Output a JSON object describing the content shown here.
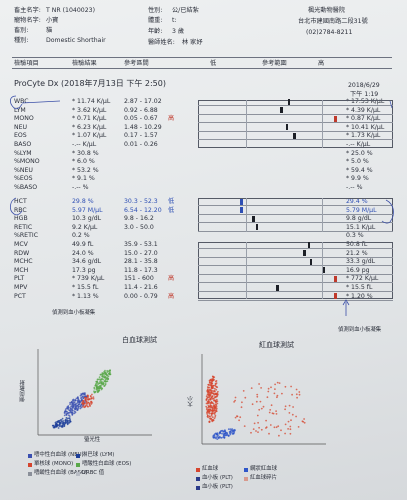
{
  "header": {
    "owner_label": "畜主名字:",
    "owner_value": "T NR (1040023)",
    "pet_name_label": "寵物名字:",
    "pet_name_value": "小寶",
    "species_label": "畜別:",
    "species_value": "貓",
    "breed_label": "種別:",
    "breed_value": "Domestic Shorthair",
    "sex_label": "性別:",
    "sex_value": "公/已結紮",
    "weight_label": "體重:",
    "weight_value": "t:",
    "age_label": "年齡:",
    "age_value": "3 歲",
    "doctor_label": "醫師姓名:",
    "doctor_value": "林 家妤",
    "clinic_name": "楓光動物醫院",
    "clinic_address": "台北市建國南路二段31號",
    "clinic_phone": "(02)2784-8211"
  },
  "columns": {
    "item": "檢驗項目",
    "result": "檢驗結果",
    "range": "參考區間",
    "low": "低",
    "ref": "參考範圍",
    "high": "高"
  },
  "machine": {
    "title": "ProCyte Dx (2018年7月13日 下午 2:50)",
    "prev_date": "2018/6/29",
    "prev_time": "下午 1:19"
  },
  "rows": [
    {
      "name": "WBC",
      "result": "* 11.74 K/μL",
      "range": "2.87 - 17.02",
      "flag": "",
      "prev": "* 17.53 K/μL",
      "gauge": 0.55
    },
    {
      "name": "LYM",
      "result": "* 3.62 K/μL",
      "range": "0.92 - 6.88",
      "flag": "",
      "prev": "* 4.39 K/μL",
      "gauge": 0.45
    },
    {
      "name": "MONO",
      "result": "* 0.71 K/μL",
      "range": "0.05 - 0.67",
      "flag": "高",
      "prev": "* 0.87 K/μL",
      "gauge": 0.98
    },
    {
      "name": "NEU",
      "result": "* 6.23 K/μL",
      "range": "1.48 - 10.29",
      "flag": "",
      "prev": "* 10.41 K/μL",
      "gauge": 0.52
    },
    {
      "name": "EOS",
      "result": "* 1.07 K/μL",
      "range": "0.17 - 1.57",
      "flag": "",
      "prev": "* 1.73 K/μL",
      "gauge": 0.62
    },
    {
      "name": "BASO",
      "result": "-.-- K/μL",
      "range": "0.01 - 0.26",
      "flag": "",
      "prev": "-.-- K/μL",
      "gauge": null
    },
    {
      "name": "%LYM",
      "result": "* 30.8 %",
      "range": "",
      "flag": "",
      "prev": "* 25.0 %",
      "gauge": null
    },
    {
      "name": "%MONO",
      "result": "* 6.0 %",
      "range": "",
      "flag": "",
      "prev": "* 5.0 %",
      "gauge": null
    },
    {
      "name": "%NEU",
      "result": "* 53.2 %",
      "range": "",
      "flag": "",
      "prev": "* 59.4 %",
      "gauge": null
    },
    {
      "name": "%EOS",
      "result": "* 9.1 %",
      "range": "",
      "flag": "",
      "prev": "* 9.9 %",
      "gauge": null
    },
    {
      "name": "%BASO",
      "result": "-.-- %",
      "range": "",
      "flag": "",
      "prev": "-.-- %",
      "gauge": null
    },
    {
      "name": "HCT",
      "result": "29.8 %",
      "range": "30.3 - 52.3",
      "flag": "低",
      "prev": "29.4 %",
      "gauge": 0.0
    },
    {
      "name": "RBC",
      "result": "5.97 M/μL",
      "range": "6.54 - 12.20",
      "flag": "低",
      "prev": "5.79 M/μL",
      "gauge": 0.0
    },
    {
      "name": "HGB",
      "result": "10.3 g/dL",
      "range": "9.8 - 16.2",
      "flag": "",
      "prev": "9.8 g/dL",
      "gauge": 0.08
    },
    {
      "name": "RETIC",
      "result": "9.2 K/μL",
      "range": "3.0 - 50.0",
      "flag": "",
      "prev": "15.1 K/μL",
      "gauge": 0.13
    },
    {
      "name": "%RETIC",
      "result": "0.2 %",
      "range": "",
      "flag": "",
      "prev": "0.3 %",
      "gauge": null
    },
    {
      "name": "MCV",
      "result": "49.9 fL",
      "range": "35.9 - 53.1",
      "flag": "",
      "prev": "50.8 fL",
      "gauge": 0.81
    },
    {
      "name": "RDW",
      "result": "24.0 %",
      "range": "15.0 - 27.0",
      "flag": "",
      "prev": "21.2 %",
      "gauge": 0.75
    },
    {
      "name": "MCHC",
      "result": "34.6 g/dL",
      "range": "28.1 - 35.8",
      "flag": "",
      "prev": "33.3 g/dL",
      "gauge": 0.84
    },
    {
      "name": "MCH",
      "result": "17.3 pg",
      "range": "11.8 - 17.3",
      "flag": "",
      "prev": "16.9 pg",
      "gauge": 1.0
    },
    {
      "name": "PLT",
      "result": "* 739 K/μL",
      "range": "151 - 600",
      "flag": "高",
      "prev": "* 772 K/μL",
      "gauge": 1.0
    },
    {
      "name": "MPV",
      "result": "* 15.5 fL",
      "range": "11.4 - 21.6",
      "flag": "",
      "prev": "* 15.5 fL",
      "gauge": 0.4
    },
    {
      "name": "PCT",
      "result": "* 1.13 %",
      "range": "0.00 - 0.79",
      "flag": "高",
      "prev": "* 1.20 %",
      "gauge": 1.0
    }
  ],
  "notes": {
    "left_note": "偵測到血小板凝集",
    "right_note": "偵測到血小板凝集"
  },
  "scatter_wbc": {
    "title": "白血球測試",
    "y_label": "側向散射",
    "x_label": "螢光性",
    "legend": [
      "嗜中性白血球 (NEU)",
      "淋巴球 (LYM)",
      "單核球 (MONO)",
      "嗜酸性白血球 (EOS)",
      "嗜鹼性白血球 (BASO)",
      "URBC 值"
    ]
  },
  "scatter_rbc": {
    "title": "紅血球測試",
    "y_label": "大小",
    "x_label": "螢光性",
    "legend": [
      "紅血球",
      "網狀紅血球",
      "血小板 (PLT)",
      "紅血球碎片",
      "血小板 (PLT)"
    ]
  },
  "colors": {
    "text": "#2b2f3a",
    "blue": "#2e4fb4",
    "red": "#c0392b",
    "neu": "#3a4fb0",
    "lym": "#1d3f9a",
    "mono": "#d4442e",
    "eos": "#5aa84a",
    "rbc": "#d6452e",
    "retic": "#2f56c8",
    "plt": "#2a3a8a"
  }
}
